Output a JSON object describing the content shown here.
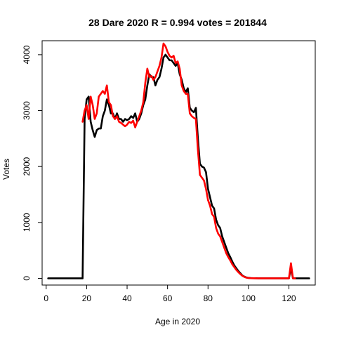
{
  "chart_data": {
    "type": "line",
    "title": "28 Dare 2020 R = 0.994 votes = 201844",
    "xlabel": "Age in 2020",
    "ylabel": "Votes",
    "xlim": [
      -2,
      133
    ],
    "ylim": [
      -120,
      4250
    ],
    "xticks": [
      0,
      20,
      40,
      60,
      80,
      100,
      120
    ],
    "yticks": [
      0,
      1000,
      2000,
      3000,
      4000
    ],
    "grid": false,
    "legend": "none",
    "series": [
      {
        "color": "#000000",
        "points": [
          [
            1,
            0
          ],
          [
            18,
            0
          ],
          [
            19,
            2850
          ],
          [
            20,
            3200
          ],
          [
            21,
            3250
          ],
          [
            22,
            2800
          ],
          [
            23,
            2650
          ],
          [
            24,
            2530
          ],
          [
            25,
            2650
          ],
          [
            26,
            2680
          ],
          [
            27,
            2680
          ],
          [
            28,
            2900
          ],
          [
            29,
            3000
          ],
          [
            30,
            3200
          ],
          [
            31,
            3100
          ],
          [
            32,
            2950
          ],
          [
            33,
            2950
          ],
          [
            34,
            2850
          ],
          [
            35,
            2950
          ],
          [
            36,
            2850
          ],
          [
            37,
            2850
          ],
          [
            38,
            2800
          ],
          [
            39,
            2850
          ],
          [
            40,
            2830
          ],
          [
            41,
            2850
          ],
          [
            42,
            2900
          ],
          [
            43,
            2870
          ],
          [
            44,
            2950
          ],
          [
            45,
            2800
          ],
          [
            46,
            2850
          ],
          [
            47,
            2950
          ],
          [
            48,
            3100
          ],
          [
            49,
            3200
          ],
          [
            50,
            3450
          ],
          [
            51,
            3650
          ],
          [
            52,
            3600
          ],
          [
            53,
            3600
          ],
          [
            54,
            3450
          ],
          [
            55,
            3550
          ],
          [
            56,
            3600
          ],
          [
            57,
            3750
          ],
          [
            58,
            3950
          ],
          [
            59,
            4000
          ],
          [
            60,
            3950
          ],
          [
            61,
            3900
          ],
          [
            62,
            3900
          ],
          [
            63,
            3850
          ],
          [
            64,
            3800
          ],
          [
            65,
            3850
          ],
          [
            66,
            3650
          ],
          [
            67,
            3550
          ],
          [
            68,
            3400
          ],
          [
            69,
            3330
          ],
          [
            70,
            3400
          ],
          [
            71,
            3050
          ],
          [
            72,
            3000
          ],
          [
            73,
            2970
          ],
          [
            74,
            3050
          ],
          [
            75,
            2500
          ],
          [
            76,
            2050
          ],
          [
            77,
            2000
          ],
          [
            78,
            1980
          ],
          [
            79,
            1900
          ],
          [
            80,
            1600
          ],
          [
            81,
            1450
          ],
          [
            82,
            1300
          ],
          [
            83,
            1250
          ],
          [
            84,
            1050
          ],
          [
            85,
            950
          ],
          [
            86,
            900
          ],
          [
            87,
            750
          ],
          [
            88,
            650
          ],
          [
            89,
            550
          ],
          [
            90,
            450
          ],
          [
            91,
            380
          ],
          [
            92,
            300
          ],
          [
            93,
            230
          ],
          [
            94,
            180
          ],
          [
            95,
            130
          ],
          [
            96,
            90
          ],
          [
            97,
            50
          ],
          [
            98,
            30
          ],
          [
            99,
            15
          ],
          [
            100,
            8
          ],
          [
            101,
            5
          ],
          [
            102,
            3
          ],
          [
            103,
            2
          ],
          [
            104,
            1
          ],
          [
            105,
            0
          ],
          [
            120,
            0
          ],
          [
            121,
            180
          ],
          [
            122,
            0
          ],
          [
            130,
            0
          ]
        ]
      },
      {
        "color": "#ff0000",
        "points": [
          [
            18,
            2800
          ],
          [
            19,
            3000
          ],
          [
            20,
            3100
          ],
          [
            21,
            2850
          ],
          [
            22,
            3250
          ],
          [
            23,
            3100
          ],
          [
            24,
            2850
          ],
          [
            25,
            2950
          ],
          [
            26,
            3250
          ],
          [
            27,
            3300
          ],
          [
            28,
            3350
          ],
          [
            29,
            3300
          ],
          [
            30,
            3450
          ],
          [
            31,
            3150
          ],
          [
            32,
            3100
          ],
          [
            33,
            2900
          ],
          [
            34,
            2850
          ],
          [
            35,
            2900
          ],
          [
            36,
            2800
          ],
          [
            37,
            2780
          ],
          [
            38,
            2750
          ],
          [
            39,
            2720
          ],
          [
            40,
            2750
          ],
          [
            41,
            2800
          ],
          [
            42,
            2780
          ],
          [
            43,
            2820
          ],
          [
            44,
            2700
          ],
          [
            45,
            2800
          ],
          [
            46,
            2900
          ],
          [
            47,
            3000
          ],
          [
            48,
            3150
          ],
          [
            49,
            3500
          ],
          [
            50,
            3750
          ],
          [
            51,
            3600
          ],
          [
            52,
            3620
          ],
          [
            53,
            3550
          ],
          [
            54,
            3600
          ],
          [
            55,
            3700
          ],
          [
            56,
            3800
          ],
          [
            57,
            3950
          ],
          [
            58,
            4200
          ],
          [
            59,
            4150
          ],
          [
            60,
            4050
          ],
          [
            61,
            3980
          ],
          [
            62,
            3950
          ],
          [
            63,
            3980
          ],
          [
            64,
            3850
          ],
          [
            65,
            3880
          ],
          [
            66,
            3750
          ],
          [
            67,
            3450
          ],
          [
            68,
            3350
          ],
          [
            69,
            3300
          ],
          [
            70,
            3300
          ],
          [
            71,
            2950
          ],
          [
            72,
            2900
          ],
          [
            73,
            2870
          ],
          [
            74,
            2850
          ],
          [
            75,
            2300
          ],
          [
            76,
            1850
          ],
          [
            77,
            1800
          ],
          [
            78,
            1750
          ],
          [
            79,
            1600
          ],
          [
            80,
            1400
          ],
          [
            81,
            1300
          ],
          [
            82,
            1150
          ],
          [
            83,
            1100
          ],
          [
            84,
            900
          ],
          [
            85,
            800
          ],
          [
            86,
            750
          ],
          [
            87,
            650
          ],
          [
            88,
            550
          ],
          [
            89,
            450
          ],
          [
            90,
            380
          ],
          [
            91,
            320
          ],
          [
            92,
            250
          ],
          [
            93,
            200
          ],
          [
            94,
            150
          ],
          [
            95,
            110
          ],
          [
            96,
            75
          ],
          [
            97,
            45
          ],
          [
            98,
            25
          ],
          [
            99,
            12
          ],
          [
            100,
            6
          ],
          [
            101,
            3
          ],
          [
            102,
            2
          ],
          [
            103,
            1
          ],
          [
            104,
            0
          ],
          [
            112,
            0
          ],
          [
            120,
            0
          ],
          [
            121,
            270
          ],
          [
            122,
            0
          ],
          [
            123,
            0
          ]
        ]
      }
    ]
  }
}
